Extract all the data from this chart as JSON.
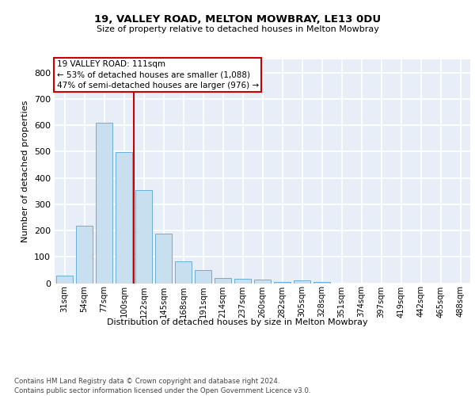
{
  "title1": "19, VALLEY ROAD, MELTON MOWBRAY, LE13 0DU",
  "title2": "Size of property relative to detached houses in Melton Mowbray",
  "xlabel": "Distribution of detached houses by size in Melton Mowbray",
  "ylabel": "Number of detached properties",
  "bin_labels": [
    "31sqm",
    "54sqm",
    "77sqm",
    "100sqm",
    "122sqm",
    "145sqm",
    "168sqm",
    "191sqm",
    "214sqm",
    "237sqm",
    "260sqm",
    "282sqm",
    "305sqm",
    "328sqm",
    "351sqm",
    "374sqm",
    "397sqm",
    "419sqm",
    "442sqm",
    "465sqm",
    "488sqm"
  ],
  "bar_values": [
    30,
    218,
    610,
    497,
    354,
    188,
    84,
    51,
    20,
    16,
    13,
    6,
    10,
    6,
    0,
    0,
    0,
    0,
    0,
    0,
    0
  ],
  "bar_color": "#c8dff0",
  "bar_edge_color": "#6aaed6",
  "bg_color": "#e8eef8",
  "grid_color": "#ffffff",
  "annotation_text": "19 VALLEY ROAD: 111sqm\n← 53% of detached houses are smaller (1,088)\n47% of semi-detached houses are larger (976) →",
  "annotation_box_color": "#ffffff",
  "annotation_box_edge_color": "#cc0000",
  "footer_text": "Contains HM Land Registry data © Crown copyright and database right 2024.\nContains public sector information licensed under the Open Government Licence v3.0.",
  "ylim": [
    0,
    850
  ],
  "yticks": [
    0,
    100,
    200,
    300,
    400,
    500,
    600,
    700,
    800
  ],
  "vline_pos": 3.5
}
